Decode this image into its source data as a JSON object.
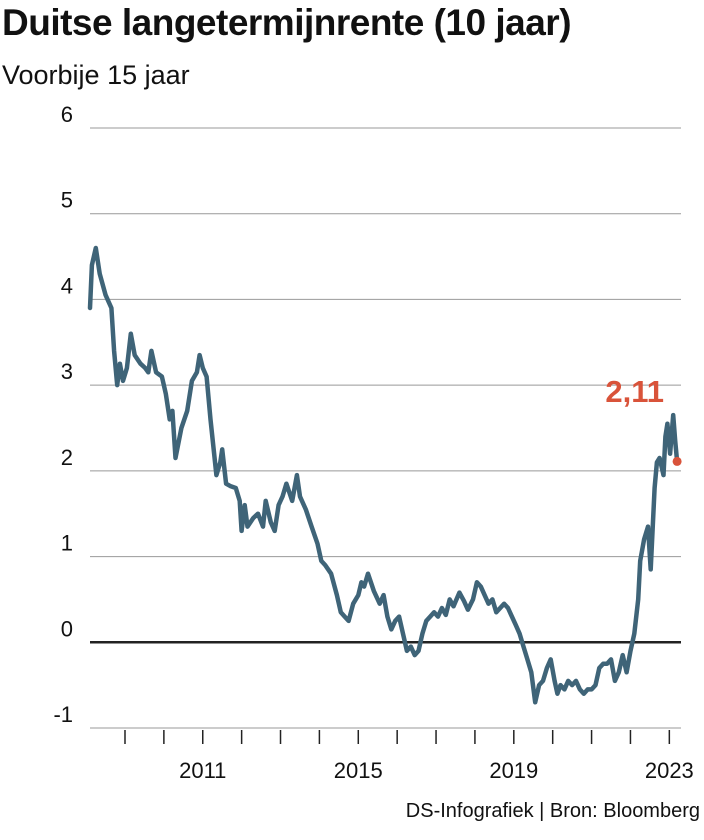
{
  "title": "Duitse langetermijnrente (10 jaar)",
  "subtitle": "Voorbije 15 jaar",
  "source": "DS-Infografiek | Bron: Bloomberg",
  "colors": {
    "line": "#3f6478",
    "highlight": "#d9533a",
    "grid": "#999999",
    "zero": "#222222"
  },
  "chart_data": {
    "type": "line",
    "title": "Duitse langetermijnrente (10 jaar)",
    "subtitle": "Voorbije 15 jaar",
    "xlim": [
      2008.1,
      2023.3
    ],
    "ylim": [
      -1,
      6
    ],
    "yticks": [
      6,
      5,
      4,
      3,
      2,
      1,
      0,
      -1
    ],
    "xtick_marks": [
      2009,
      2010,
      2011,
      2012,
      2013,
      2014,
      2015,
      2016,
      2017,
      2018,
      2019,
      2020,
      2021,
      2022,
      2023
    ],
    "xtick_labels": [
      {
        "value": 2011,
        "label": "2011"
      },
      {
        "value": 2015,
        "label": "2015"
      },
      {
        "value": 2019,
        "label": "2019"
      },
      {
        "value": 2023,
        "label": "2023"
      }
    ],
    "grid": true,
    "zero_line": true,
    "last_value_label": "2,11",
    "series": [
      {
        "points": [
          [
            2008.1,
            3.9
          ],
          [
            2008.15,
            4.4
          ],
          [
            2008.25,
            4.6
          ],
          [
            2008.35,
            4.3
          ],
          [
            2008.5,
            4.05
          ],
          [
            2008.65,
            3.9
          ],
          [
            2008.72,
            3.4
          ],
          [
            2008.8,
            3.0
          ],
          [
            2008.87,
            3.25
          ],
          [
            2008.95,
            3.05
          ],
          [
            2009.05,
            3.2
          ],
          [
            2009.15,
            3.6
          ],
          [
            2009.25,
            3.35
          ],
          [
            2009.4,
            3.25
          ],
          [
            2009.52,
            3.2
          ],
          [
            2009.6,
            3.15
          ],
          [
            2009.68,
            3.4
          ],
          [
            2009.8,
            3.15
          ],
          [
            2009.95,
            3.1
          ],
          [
            2010.05,
            2.9
          ],
          [
            2010.15,
            2.6
          ],
          [
            2010.22,
            2.7
          ],
          [
            2010.3,
            2.15
          ],
          [
            2010.45,
            2.5
          ],
          [
            2010.6,
            2.7
          ],
          [
            2010.72,
            3.05
          ],
          [
            2010.85,
            3.15
          ],
          [
            2010.92,
            3.35
          ],
          [
            2011.0,
            3.2
          ],
          [
            2011.1,
            3.1
          ],
          [
            2011.2,
            2.6
          ],
          [
            2011.35,
            1.95
          ],
          [
            2011.45,
            2.1
          ],
          [
            2011.5,
            2.25
          ],
          [
            2011.6,
            1.85
          ],
          [
            2011.72,
            1.82
          ],
          [
            2011.85,
            1.8
          ],
          [
            2011.95,
            1.65
          ],
          [
            2012.0,
            1.3
          ],
          [
            2012.08,
            1.6
          ],
          [
            2012.15,
            1.35
          ],
          [
            2012.3,
            1.45
          ],
          [
            2012.42,
            1.5
          ],
          [
            2012.55,
            1.35
          ],
          [
            2012.62,
            1.65
          ],
          [
            2012.75,
            1.4
          ],
          [
            2012.85,
            1.3
          ],
          [
            2012.95,
            1.6
          ],
          [
            2013.05,
            1.7
          ],
          [
            2013.15,
            1.85
          ],
          [
            2013.3,
            1.65
          ],
          [
            2013.42,
            1.95
          ],
          [
            2013.5,
            1.7
          ],
          [
            2013.65,
            1.55
          ],
          [
            2013.8,
            1.35
          ],
          [
            2013.95,
            1.15
          ],
          [
            2014.05,
            0.95
          ],
          [
            2014.15,
            0.9
          ],
          [
            2014.3,
            0.8
          ],
          [
            2014.45,
            0.55
          ],
          [
            2014.55,
            0.35
          ],
          [
            2014.65,
            0.3
          ],
          [
            2014.75,
            0.25
          ],
          [
            2014.87,
            0.45
          ],
          [
            2015.0,
            0.55
          ],
          [
            2015.08,
            0.7
          ],
          [
            2015.15,
            0.65
          ],
          [
            2015.25,
            0.8
          ],
          [
            2015.4,
            0.6
          ],
          [
            2015.55,
            0.45
          ],
          [
            2015.65,
            0.55
          ],
          [
            2015.75,
            0.3
          ],
          [
            2015.85,
            0.15
          ],
          [
            2015.95,
            0.25
          ],
          [
            2016.05,
            0.3
          ],
          [
            2016.15,
            0.1
          ],
          [
            2016.25,
            -0.1
          ],
          [
            2016.35,
            -0.05
          ],
          [
            2016.45,
            -0.15
          ],
          [
            2016.55,
            -0.1
          ],
          [
            2016.65,
            0.1
          ],
          [
            2016.75,
            0.25
          ],
          [
            2016.85,
            0.3
          ],
          [
            2016.95,
            0.35
          ],
          [
            2017.05,
            0.3
          ],
          [
            2017.15,
            0.4
          ],
          [
            2017.25,
            0.32
          ],
          [
            2017.35,
            0.5
          ],
          [
            2017.45,
            0.42
          ],
          [
            2017.6,
            0.58
          ],
          [
            2017.72,
            0.48
          ],
          [
            2017.82,
            0.38
          ],
          [
            2017.95,
            0.5
          ],
          [
            2018.05,
            0.7
          ],
          [
            2018.15,
            0.65
          ],
          [
            2018.25,
            0.55
          ],
          [
            2018.35,
            0.45
          ],
          [
            2018.45,
            0.5
          ],
          [
            2018.55,
            0.35
          ],
          [
            2018.65,
            0.4
          ],
          [
            2018.75,
            0.45
          ],
          [
            2018.85,
            0.4
          ],
          [
            2018.95,
            0.3
          ],
          [
            2019.05,
            0.2
          ],
          [
            2019.15,
            0.1
          ],
          [
            2019.25,
            -0.05
          ],
          [
            2019.35,
            -0.2
          ],
          [
            2019.45,
            -0.35
          ],
          [
            2019.55,
            -0.7
          ],
          [
            2019.65,
            -0.5
          ],
          [
            2019.75,
            -0.45
          ],
          [
            2019.85,
            -0.3
          ],
          [
            2019.95,
            -0.2
          ],
          [
            2020.05,
            -0.45
          ],
          [
            2020.12,
            -0.6
          ],
          [
            2020.2,
            -0.5
          ],
          [
            2020.3,
            -0.55
          ],
          [
            2020.4,
            -0.45
          ],
          [
            2020.5,
            -0.5
          ],
          [
            2020.6,
            -0.45
          ],
          [
            2020.7,
            -0.55
          ],
          [
            2020.8,
            -0.6
          ],
          [
            2020.9,
            -0.55
          ],
          [
            2021.0,
            -0.55
          ],
          [
            2021.1,
            -0.5
          ],
          [
            2021.2,
            -0.3
          ],
          [
            2021.3,
            -0.25
          ],
          [
            2021.4,
            -0.25
          ],
          [
            2021.5,
            -0.2
          ],
          [
            2021.6,
            -0.45
          ],
          [
            2021.7,
            -0.35
          ],
          [
            2021.8,
            -0.15
          ],
          [
            2021.9,
            -0.35
          ],
          [
            2022.0,
            -0.1
          ],
          [
            2022.1,
            0.1
          ],
          [
            2022.2,
            0.5
          ],
          [
            2022.25,
            0.95
          ],
          [
            2022.35,
            1.2
          ],
          [
            2022.45,
            1.35
          ],
          [
            2022.52,
            0.85
          ],
          [
            2022.62,
            1.8
          ],
          [
            2022.68,
            2.1
          ],
          [
            2022.75,
            2.15
          ],
          [
            2022.85,
            1.95
          ],
          [
            2022.9,
            2.4
          ],
          [
            2022.95,
            2.55
          ],
          [
            2023.02,
            2.2
          ],
          [
            2023.1,
            2.65
          ],
          [
            2023.15,
            2.35
          ],
          [
            2023.2,
            2.11
          ]
        ]
      }
    ]
  }
}
